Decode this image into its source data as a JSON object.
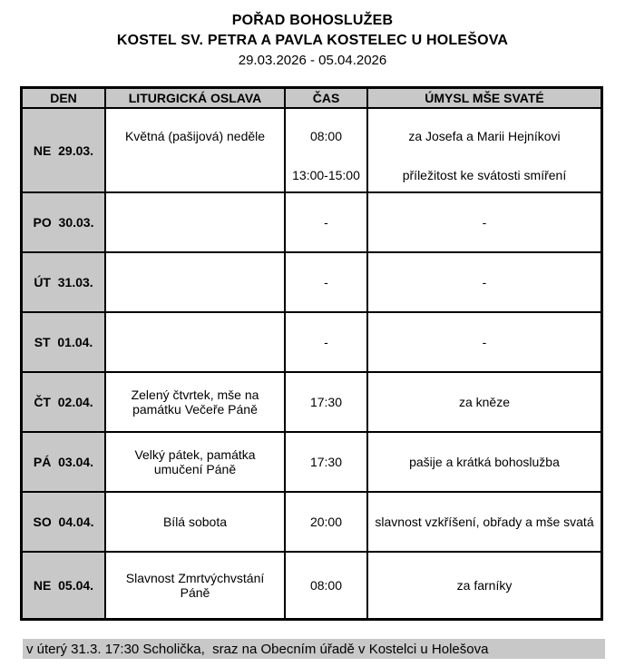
{
  "header": {
    "title": "POŘAD BOHOSLUŽEB",
    "subtitle": "KOSTEL SV. PETRA A PAVLA KOSTELEC U HOLEŠOVA",
    "date_range": "29.03.2026 - 05.04.2026"
  },
  "table": {
    "columns": [
      "DEN",
      "LITURGICKÁ OSLAVA",
      "ČAS",
      "ÚMYSL MŠE SVATÉ"
    ],
    "rows": [
      {
        "day": "NE  29.03.",
        "celebration": "Květná (pašijová) neděle",
        "time": "08:00",
        "intention": "za Josefa a Marii Hejníkovi",
        "time2": "13:00-15:00",
        "intention2": "příležitost ke svátosti smíření"
      },
      {
        "day": "PO  30.03.",
        "celebration": "",
        "time": "-",
        "intention": "-"
      },
      {
        "day": "ÚT  31.03.",
        "celebration": "",
        "time": "-",
        "intention": "-"
      },
      {
        "day": "ST  01.04.",
        "celebration": "",
        "time": "-",
        "intention": "-"
      },
      {
        "day": "ČT  02.04.",
        "celebration": "Zelený čtvrtek, mše na památku Večeře Páně",
        "time": "17:30",
        "intention": "za kněze"
      },
      {
        "day": "PÁ  03.04.",
        "celebration": "Velký pátek, památka umučení Páně",
        "time": "17:30",
        "intention": "pašije a krátká bohoslužba"
      },
      {
        "day": "SO  04.04.",
        "celebration": "Bílá sobota",
        "time": "20:00",
        "intention": "slavnost vzkříšení, obřady a mše svatá"
      },
      {
        "day": "NE  05.04.",
        "celebration": "Slavnost Zmrtvýchvstání Páně",
        "time": "08:00",
        "intention": "za farníky"
      }
    ]
  },
  "footer": {
    "note": "v úterý 31.3. 17:30 Scholička,  sraz na Obecním úřadě v Kostelci u Holešova"
  },
  "colors": {
    "cell_gray": "#c8c8c8",
    "border": "#000000",
    "background": "#ffffff"
  }
}
